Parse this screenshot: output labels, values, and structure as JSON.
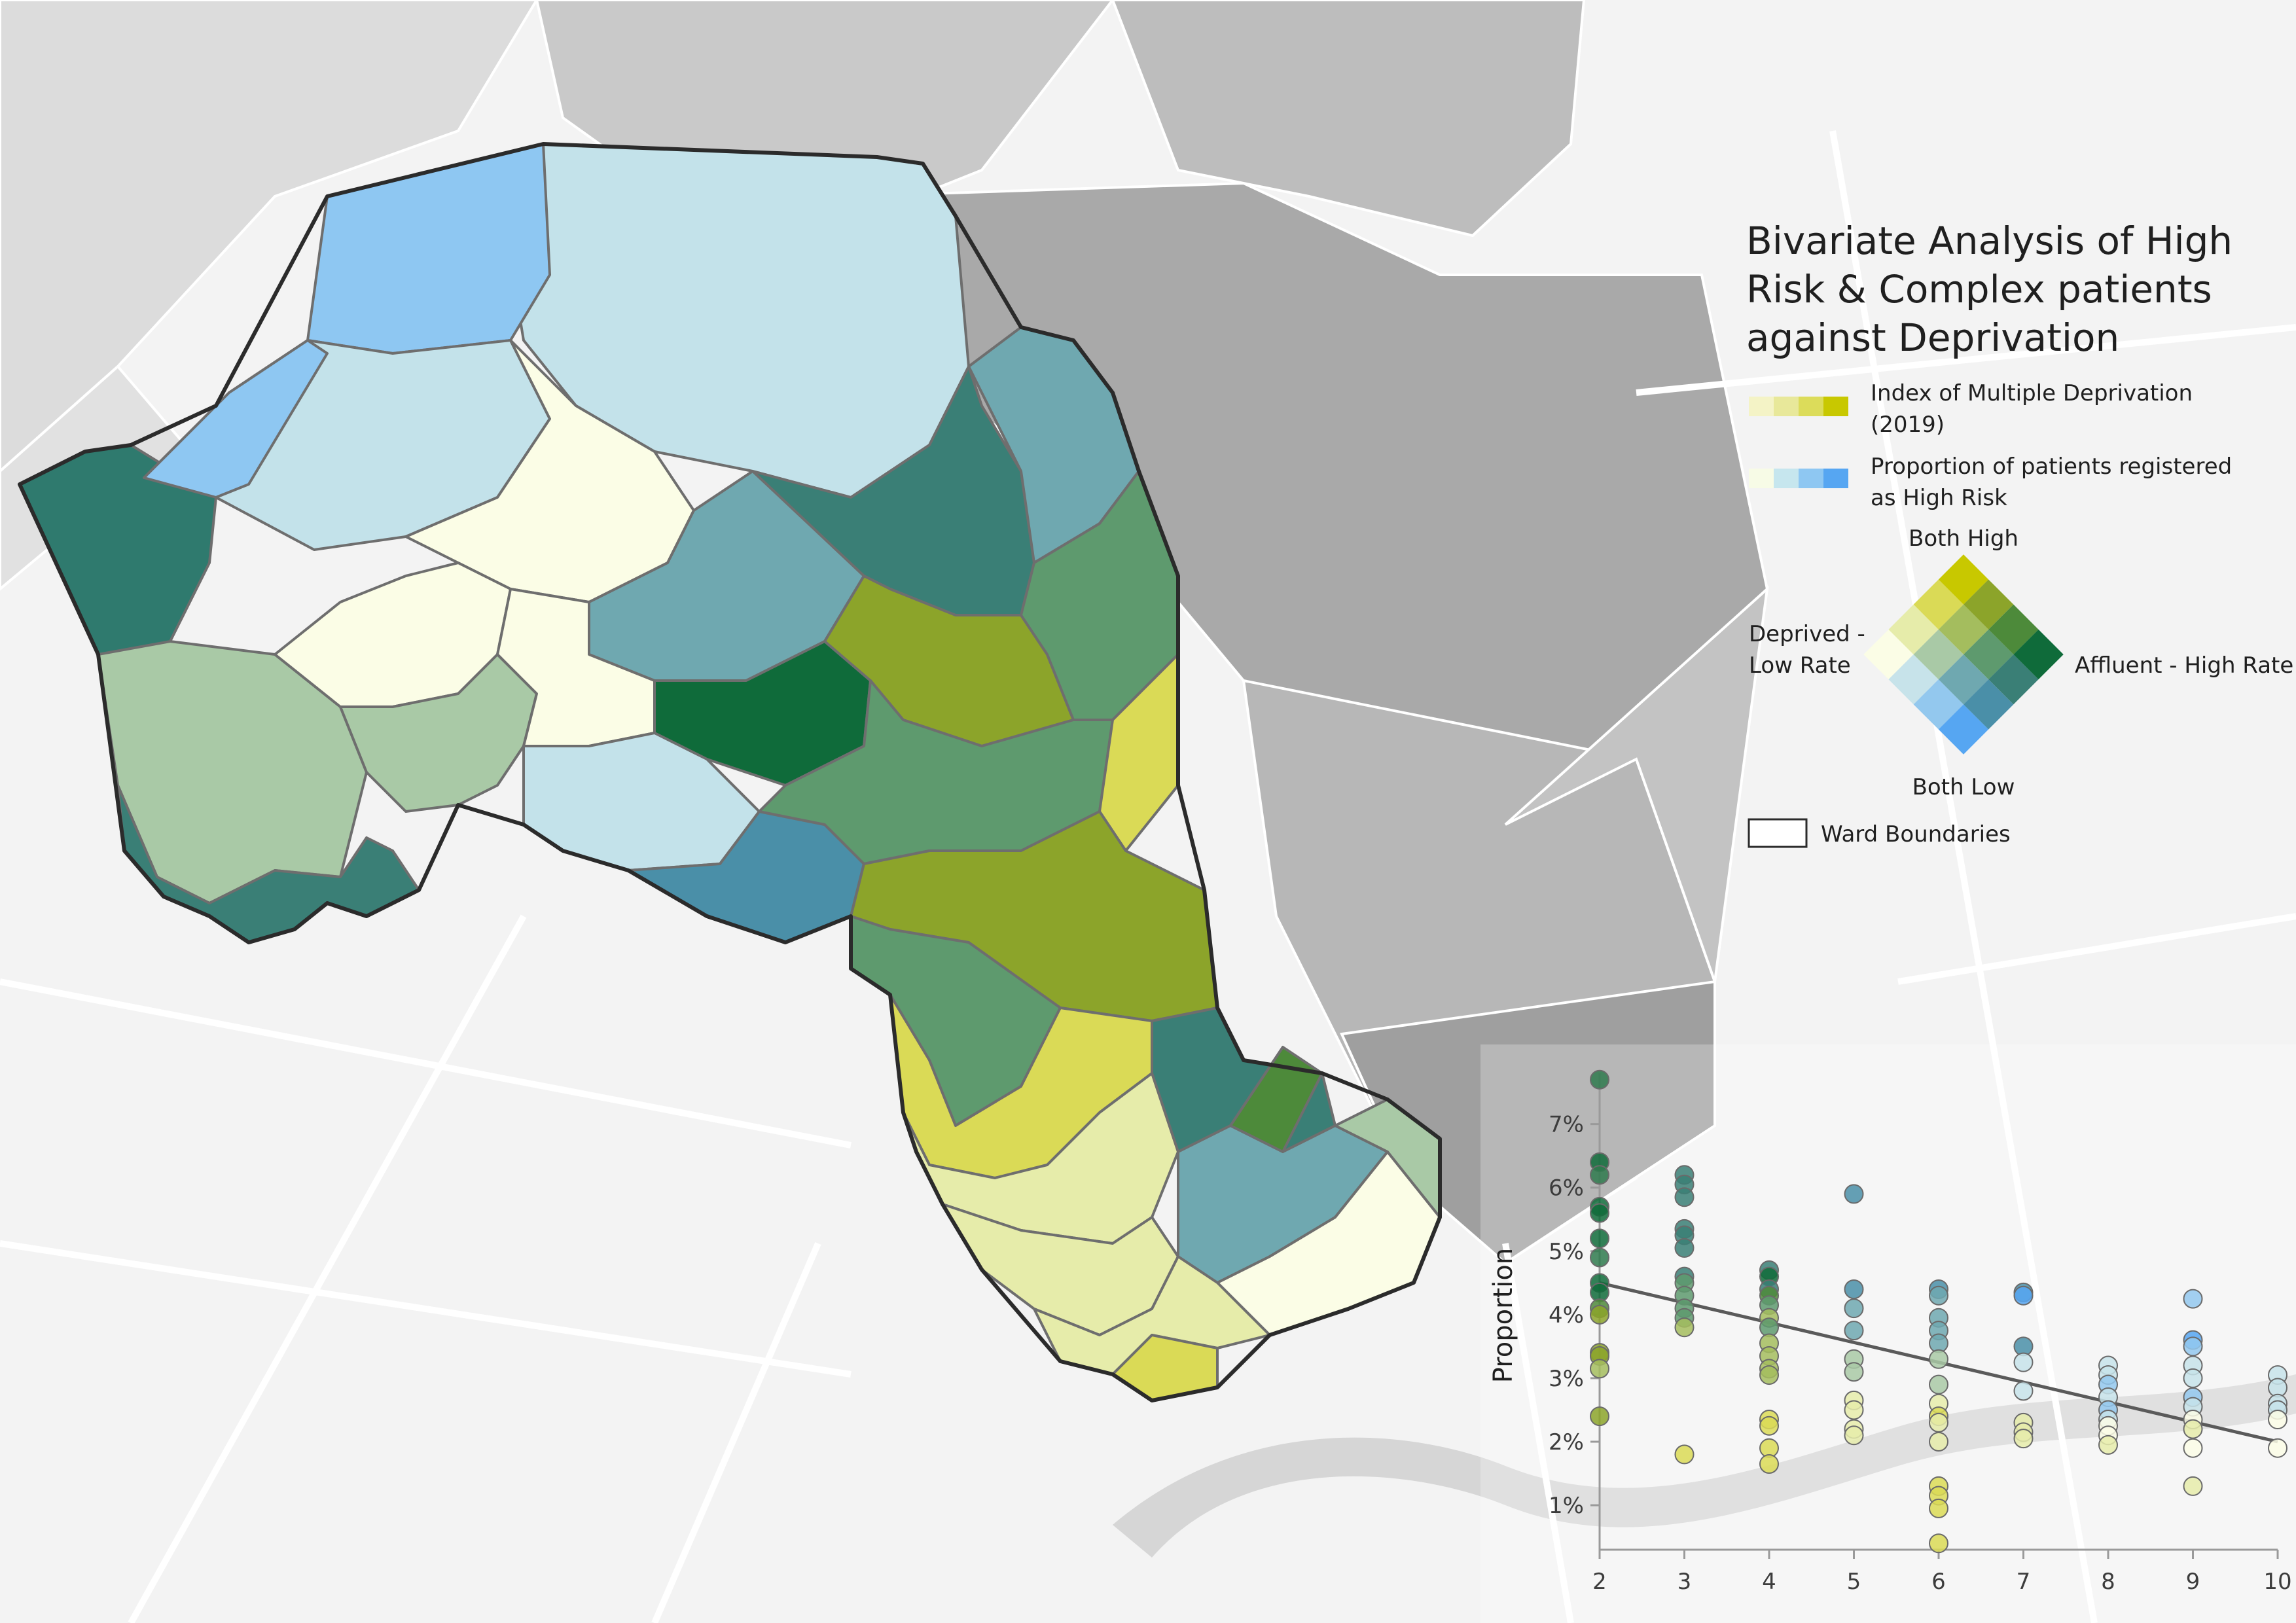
{
  "legend": {
    "title_line1": "Bivariate Analysis of High",
    "title_line2": "Risk & Complex patients",
    "title_line3": "against Deprivation",
    "imd_line1": "Index of Multiple Deprivation",
    "imd_line2": "(2019)",
    "prop_line1": "Proportion of patients registered",
    "prop_line2": "as High Risk",
    "both_high": "Both High",
    "both_low": "Both Low",
    "deprived_line1": "Deprived -",
    "deprived_line2": "Low Rate",
    "affluent": "Affluent - High Rate",
    "ward_boundaries": "Ward Boundaries",
    "imd_colors": [
      "#f4f3c6",
      "#e8e89a",
      "#dcdc5a",
      "#c8c800"
    ],
    "prop_colors": [
      "#f7fbe6",
      "#c6e6ee",
      "#8ec7f2",
      "#56a6f2"
    ],
    "bivariate_grid": [
      [
        "#fbfde6",
        "#c7e3ea",
        "#93c8ee",
        "#56a6f2"
      ],
      [
        "#e6ecaa",
        "#a9c9a6",
        "#6fa8b0",
        "#4a8fa8"
      ],
      [
        "#dada56",
        "#a4bd5e",
        "#5e9a6e",
        "#3a7f76"
      ],
      [
        "#c8c800",
        "#8ca42a",
        "#4d8a3a",
        "#0f6b3a"
      ]
    ]
  },
  "chart_data": {
    "type": "scatter",
    "xlabel": "",
    "ylabel": "Proportion",
    "x_ticks": [
      "2",
      "3",
      "4",
      "5",
      "6",
      "7",
      "8",
      "9",
      "10"
    ],
    "y_ticks": [
      "1%",
      "2%",
      "3%",
      "4%",
      "5%",
      "6%",
      "7%"
    ],
    "xlim": [
      2,
      10
    ],
    "ylim": [
      0.3,
      7.8
    ],
    "grid": false,
    "trendline": {
      "x": [
        2,
        10
      ],
      "y": [
        4.5,
        2.0
      ]
    },
    "points": [
      {
        "x": 2,
        "y": 7.7,
        "c": "#2f7a4e"
      },
      {
        "x": 2,
        "y": 6.4,
        "c": "#0f6b3a"
      },
      {
        "x": 2,
        "y": 6.2,
        "c": "#2f7a4e"
      },
      {
        "x": 2,
        "y": 5.7,
        "c": "#0f6b3a"
      },
      {
        "x": 2,
        "y": 5.6,
        "c": "#0f6b3a"
      },
      {
        "x": 2,
        "y": 5.2,
        "c": "#0f6b3a"
      },
      {
        "x": 2,
        "y": 4.9,
        "c": "#2f7a4e"
      },
      {
        "x": 2,
        "y": 4.5,
        "c": "#0f6b3a"
      },
      {
        "x": 2,
        "y": 4.35,
        "c": "#0f6b3a"
      },
      {
        "x": 2,
        "y": 4.1,
        "c": "#4d8a3a"
      },
      {
        "x": 2,
        "y": 4.0,
        "c": "#8ca42a"
      },
      {
        "x": 2,
        "y": 3.4,
        "c": "#8ca42a"
      },
      {
        "x": 2,
        "y": 3.35,
        "c": "#8ca42a"
      },
      {
        "x": 2,
        "y": 3.15,
        "c": "#a4bd5e"
      },
      {
        "x": 2,
        "y": 2.4,
        "c": "#8ca42a"
      },
      {
        "x": 3,
        "y": 6.2,
        "c": "#3a7f76"
      },
      {
        "x": 3,
        "y": 6.05,
        "c": "#3a7f76"
      },
      {
        "x": 3,
        "y": 5.85,
        "c": "#3a7f76"
      },
      {
        "x": 3,
        "y": 5.35,
        "c": "#3a7f76"
      },
      {
        "x": 3,
        "y": 5.25,
        "c": "#3a7f76"
      },
      {
        "x": 3,
        "y": 5.05,
        "c": "#3a7f76"
      },
      {
        "x": 3,
        "y": 4.6,
        "c": "#3a7f76"
      },
      {
        "x": 3,
        "y": 4.5,
        "c": "#5e9a6e"
      },
      {
        "x": 3,
        "y": 4.3,
        "c": "#5e9a6e"
      },
      {
        "x": 3,
        "y": 4.1,
        "c": "#5e9a6e"
      },
      {
        "x": 3,
        "y": 3.95,
        "c": "#5e9a6e"
      },
      {
        "x": 3,
        "y": 3.8,
        "c": "#a4bd5e"
      },
      {
        "x": 3,
        "y": 1.8,
        "c": "#dada56"
      },
      {
        "x": 4,
        "y": 4.7,
        "c": "#3a7f76"
      },
      {
        "x": 4,
        "y": 4.6,
        "c": "#0f6b3a"
      },
      {
        "x": 4,
        "y": 4.4,
        "c": "#3a7f76"
      },
      {
        "x": 4,
        "y": 4.3,
        "c": "#4d8a3a"
      },
      {
        "x": 4,
        "y": 4.15,
        "c": "#5e9a6e"
      },
      {
        "x": 4,
        "y": 3.95,
        "c": "#a4bd5e"
      },
      {
        "x": 4,
        "y": 3.8,
        "c": "#5e9a6e"
      },
      {
        "x": 4,
        "y": 3.55,
        "c": "#a4bd5e"
      },
      {
        "x": 4,
        "y": 3.35,
        "c": "#a4bd5e"
      },
      {
        "x": 4,
        "y": 3.15,
        "c": "#a4bd5e"
      },
      {
        "x": 4,
        "y": 3.05,
        "c": "#a4bd5e"
      },
      {
        "x": 4,
        "y": 2.35,
        "c": "#dada56"
      },
      {
        "x": 4,
        "y": 2.25,
        "c": "#dada56"
      },
      {
        "x": 4,
        "y": 1.9,
        "c": "#dada56"
      },
      {
        "x": 4,
        "y": 1.65,
        "c": "#dada56"
      },
      {
        "x": 5,
        "y": 5.9,
        "c": "#4a8fa8"
      },
      {
        "x": 5,
        "y": 4.4,
        "c": "#4a8fa8"
      },
      {
        "x": 5,
        "y": 4.1,
        "c": "#6fa8b0"
      },
      {
        "x": 5,
        "y": 3.75,
        "c": "#6fa8b0"
      },
      {
        "x": 5,
        "y": 3.3,
        "c": "#a9c9a6"
      },
      {
        "x": 5,
        "y": 3.1,
        "c": "#a9c9a6"
      },
      {
        "x": 5,
        "y": 2.65,
        "c": "#e6ecaa"
      },
      {
        "x": 5,
        "y": 2.5,
        "c": "#e6ecaa"
      },
      {
        "x": 5,
        "y": 2.2,
        "c": "#e6ecaa"
      },
      {
        "x": 5,
        "y": 2.1,
        "c": "#e6ecaa"
      },
      {
        "x": 6,
        "y": 4.4,
        "c": "#4a8fa8"
      },
      {
        "x": 6,
        "y": 4.3,
        "c": "#6fa8b0"
      },
      {
        "x": 6,
        "y": 3.95,
        "c": "#6fa8b0"
      },
      {
        "x": 6,
        "y": 3.75,
        "c": "#6fa8b0"
      },
      {
        "x": 6,
        "y": 3.55,
        "c": "#6fa8b0"
      },
      {
        "x": 6,
        "y": 3.3,
        "c": "#a9c9a6"
      },
      {
        "x": 6,
        "y": 2.9,
        "c": "#a9c9a6"
      },
      {
        "x": 6,
        "y": 2.6,
        "c": "#e6ecaa"
      },
      {
        "x": 6,
        "y": 2.4,
        "c": "#dada56"
      },
      {
        "x": 6,
        "y": 2.3,
        "c": "#e6ecaa"
      },
      {
        "x": 6,
        "y": 2.0,
        "c": "#e6ecaa"
      },
      {
        "x": 6,
        "y": 1.3,
        "c": "#dada56"
      },
      {
        "x": 6,
        "y": 1.15,
        "c": "#dada56"
      },
      {
        "x": 6,
        "y": 0.95,
        "c": "#dada56"
      },
      {
        "x": 6,
        "y": 0.4,
        "c": "#dada56"
      },
      {
        "x": 7,
        "y": 4.35,
        "c": "#4a8fa8"
      },
      {
        "x": 7,
        "y": 4.3,
        "c": "#56a6f2"
      },
      {
        "x": 7,
        "y": 3.5,
        "c": "#4a8fa8"
      },
      {
        "x": 7,
        "y": 3.25,
        "c": "#c7e3ea"
      },
      {
        "x": 7,
        "y": 2.8,
        "c": "#c7e3ea"
      },
      {
        "x": 7,
        "y": 2.3,
        "c": "#e6ecaa"
      },
      {
        "x": 7,
        "y": 2.15,
        "c": "#e6ecaa"
      },
      {
        "x": 7,
        "y": 2.05,
        "c": "#e6ecaa"
      },
      {
        "x": 8,
        "y": 3.2,
        "c": "#c7e3ea"
      },
      {
        "x": 8,
        "y": 3.05,
        "c": "#c7e3ea"
      },
      {
        "x": 8,
        "y": 2.9,
        "c": "#93c8ee"
      },
      {
        "x": 8,
        "y": 2.7,
        "c": "#c7e3ea"
      },
      {
        "x": 8,
        "y": 2.5,
        "c": "#93c8ee"
      },
      {
        "x": 8,
        "y": 2.35,
        "c": "#c7e3ea"
      },
      {
        "x": 8,
        "y": 2.25,
        "c": "#fbfde6"
      },
      {
        "x": 8,
        "y": 2.1,
        "c": "#fbfde6"
      },
      {
        "x": 8,
        "y": 1.95,
        "c": "#e6ecaa"
      },
      {
        "x": 9,
        "y": 4.25,
        "c": "#93c8ee"
      },
      {
        "x": 9,
        "y": 3.6,
        "c": "#56a6f2"
      },
      {
        "x": 9,
        "y": 3.5,
        "c": "#93c8ee"
      },
      {
        "x": 9,
        "y": 3.2,
        "c": "#c7e3ea"
      },
      {
        "x": 9,
        "y": 3.0,
        "c": "#c7e3ea"
      },
      {
        "x": 9,
        "y": 2.7,
        "c": "#93c8ee"
      },
      {
        "x": 9,
        "y": 2.55,
        "c": "#c7e3ea"
      },
      {
        "x": 9,
        "y": 2.35,
        "c": "#fbfde6"
      },
      {
        "x": 9,
        "y": 2.2,
        "c": "#e6ecaa"
      },
      {
        "x": 9,
        "y": 1.9,
        "c": "#fbfde6"
      },
      {
        "x": 9,
        "y": 1.3,
        "c": "#e6ecaa"
      },
      {
        "x": 10,
        "y": 3.05,
        "c": "#c7e3ea"
      },
      {
        "x": 10,
        "y": 2.85,
        "c": "#c7e3ea"
      },
      {
        "x": 10,
        "y": 2.6,
        "c": "#c7e3ea"
      },
      {
        "x": 10,
        "y": 2.5,
        "c": "#c7e3ea"
      },
      {
        "x": 10,
        "y": 2.35,
        "c": "#fbfde6"
      },
      {
        "x": 10,
        "y": 1.9,
        "c": "#fbfde6"
      }
    ]
  }
}
